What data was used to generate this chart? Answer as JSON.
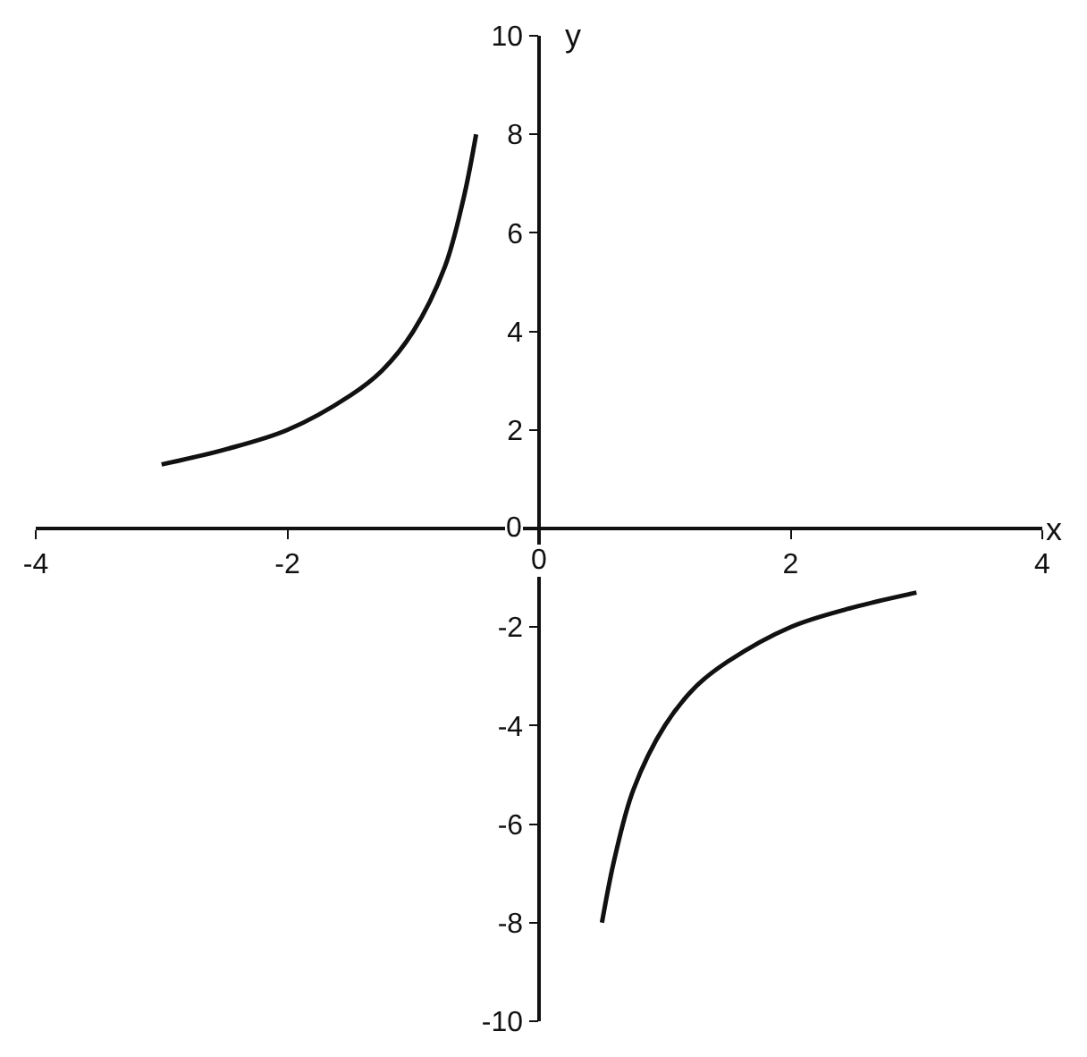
{
  "chart_data": {
    "type": "line",
    "xlabel": "x",
    "ylabel": "y",
    "xlim": [
      -4,
      4
    ],
    "ylim": [
      -10,
      10
    ],
    "xticks": [
      -4,
      -2,
      0,
      2,
      4
    ],
    "yticks": [
      -10,
      -8,
      -6,
      -4,
      -2,
      0,
      2,
      4,
      6,
      8,
      10
    ],
    "legend": false,
    "marker": "none",
    "line_style": "solid",
    "series": [
      {
        "color": "#111111",
        "x": [
          -3,
          -2.5,
          -2,
          -1.5,
          -1.25,
          -1,
          -0.75,
          -0.6,
          -0.5
        ],
        "values": [
          1.3,
          1.6,
          2.0,
          2.7,
          3.2,
          4.0,
          5.3,
          6.7,
          8.0
        ]
      },
      {
        "color": "#111111",
        "x": [
          0.5,
          0.6,
          0.75,
          1,
          1.25,
          1.5,
          2,
          2.5,
          3
        ],
        "values": [
          -8.0,
          -6.7,
          -5.3,
          -4.0,
          -3.2,
          -2.7,
          -2.0,
          -1.6,
          -1.3
        ]
      }
    ]
  }
}
